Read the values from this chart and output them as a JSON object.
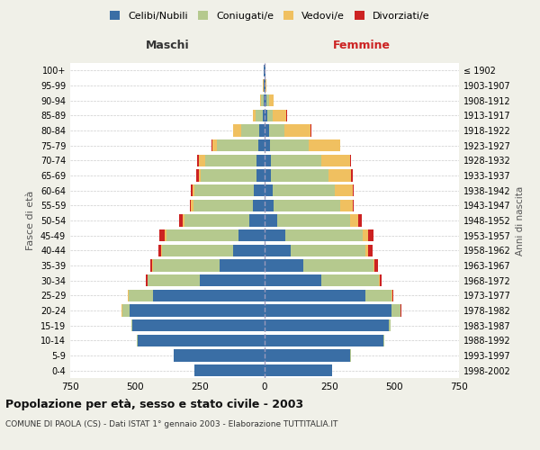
{
  "age_groups": [
    "0-4",
    "5-9",
    "10-14",
    "15-19",
    "20-24",
    "25-29",
    "30-34",
    "35-39",
    "40-44",
    "45-49",
    "50-54",
    "55-59",
    "60-64",
    "65-69",
    "70-74",
    "75-79",
    "80-84",
    "85-89",
    "90-94",
    "95-99",
    "100+"
  ],
  "birth_years": [
    "1998-2002",
    "1993-1997",
    "1988-1992",
    "1983-1987",
    "1978-1982",
    "1973-1977",
    "1968-1972",
    "1963-1967",
    "1958-1962",
    "1953-1957",
    "1948-1952",
    "1943-1947",
    "1938-1942",
    "1933-1937",
    "1928-1932",
    "1923-1927",
    "1918-1922",
    "1913-1917",
    "1908-1912",
    "1903-1907",
    "≤ 1902"
  ],
  "males": {
    "celibi": [
      270,
      350,
      490,
      510,
      520,
      430,
      250,
      175,
      120,
      100,
      60,
      45,
      40,
      30,
      30,
      25,
      20,
      8,
      5,
      3,
      2
    ],
    "coniugati": [
      1,
      2,
      3,
      5,
      30,
      95,
      200,
      255,
      275,
      280,
      250,
      230,
      230,
      215,
      200,
      160,
      70,
      25,
      8,
      2,
      1
    ],
    "vedovi": [
      0,
      0,
      0,
      0,
      1,
      2,
      2,
      3,
      3,
      5,
      5,
      8,
      8,
      10,
      25,
      15,
      30,
      12,
      4,
      1,
      0
    ],
    "divorziati": [
      0,
      0,
      0,
      0,
      1,
      2,
      5,
      8,
      10,
      20,
      15,
      5,
      8,
      8,
      5,
      5,
      2,
      1,
      0,
      0,
      0
    ]
  },
  "females": {
    "nubili": [
      260,
      330,
      460,
      480,
      490,
      390,
      220,
      150,
      100,
      80,
      50,
      35,
      30,
      25,
      25,
      20,
      18,
      10,
      8,
      3,
      2
    ],
    "coniugate": [
      1,
      2,
      3,
      5,
      35,
      100,
      220,
      270,
      290,
      300,
      280,
      255,
      240,
      220,
      195,
      150,
      60,
      20,
      8,
      2,
      1
    ],
    "vedove": [
      0,
      0,
      0,
      0,
      1,
      3,
      5,
      5,
      10,
      20,
      30,
      50,
      70,
      90,
      110,
      120,
      100,
      55,
      20,
      3,
      1
    ],
    "divorziate": [
      0,
      0,
      0,
      0,
      1,
      3,
      8,
      12,
      15,
      20,
      15,
      5,
      5,
      5,
      5,
      3,
      2,
      1,
      0,
      0,
      0
    ]
  },
  "colors": {
    "celibi": "#3a6ea5",
    "coniugati": "#b5c98e",
    "vedovi": "#f0c060",
    "divorziati": "#cc2222"
  },
  "xlim": 750,
  "title": "Popolazione per età, sesso e stato civile - 2003",
  "subtitle": "COMUNE DI PAOLA (CS) - Dati ISTAT 1° gennaio 2003 - Elaborazione TUTTITALIA.IT",
  "ylabel_left": "Fasce di età",
  "ylabel_right": "Anni di nascita",
  "xlabel_left": "Maschi",
  "xlabel_right": "Femmine",
  "bg_color": "#f0f0e8",
  "plot_bg": "#ffffff"
}
